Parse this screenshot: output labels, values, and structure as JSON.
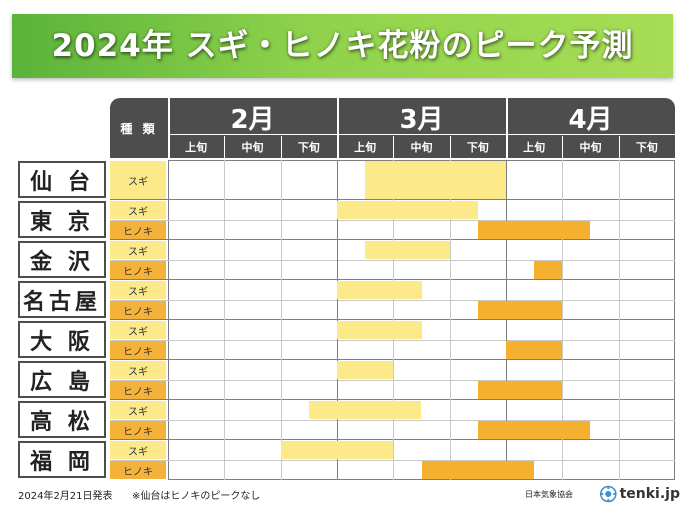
{
  "title": "2024年 スギ・ヒノキ花粉のピーク予測",
  "header": {
    "kind_label": "種 類",
    "months": [
      "2月",
      "3月",
      "4月"
    ],
    "dekads": [
      "上旬",
      "中旬",
      "下旬",
      "上旬",
      "中旬",
      "下旬",
      "上旬",
      "中旬",
      "下旬"
    ]
  },
  "colors": {
    "sugi": "#fbe98a",
    "hinoki": "#f4b02e",
    "header_bg": "#4d4d4d",
    "banner": "#7cc443"
  },
  "cities": [
    {
      "name": "仙 台",
      "rows": [
        {
          "type": "スギ",
          "kind": "sugi",
          "periods": [
            [
              3.5,
              6.0
            ]
          ]
        }
      ]
    },
    {
      "name": "東 京",
      "rows": [
        {
          "type": "スギ",
          "kind": "sugi",
          "periods": [
            [
              3.0,
              5.5
            ]
          ]
        },
        {
          "type": "ヒノキ",
          "kind": "hinoki",
          "periods": [
            [
              5.5,
              7.5
            ]
          ]
        }
      ]
    },
    {
      "name": "金 沢",
      "rows": [
        {
          "type": "スギ",
          "kind": "sugi",
          "periods": [
            [
              3.5,
              5.0
            ]
          ]
        },
        {
          "type": "ヒノキ",
          "kind": "hinoki",
          "periods": [
            [
              6.5,
              7.0
            ]
          ]
        }
      ]
    },
    {
      "name": "名古屋",
      "rows": [
        {
          "type": "スギ",
          "kind": "sugi",
          "periods": [
            [
              3.0,
              4.5
            ]
          ]
        },
        {
          "type": "ヒノキ",
          "kind": "hinoki",
          "periods": [
            [
              5.5,
              7.0
            ]
          ]
        }
      ]
    },
    {
      "name": "大 阪",
      "rows": [
        {
          "type": "スギ",
          "kind": "sugi",
          "periods": [
            [
              3.0,
              4.5
            ]
          ]
        },
        {
          "type": "ヒノキ",
          "kind": "hinoki",
          "periods": [
            [
              6.0,
              7.0
            ]
          ]
        }
      ]
    },
    {
      "name": "広 島",
      "rows": [
        {
          "type": "スギ",
          "kind": "sugi",
          "periods": [
            [
              3.0,
              4.0
            ]
          ]
        },
        {
          "type": "ヒノキ",
          "kind": "hinoki",
          "periods": [
            [
              5.5,
              7.0
            ]
          ]
        }
      ]
    },
    {
      "name": "高 松",
      "rows": [
        {
          "type": "スギ",
          "kind": "sugi",
          "periods": [
            [
              2.5,
              4.5
            ]
          ]
        },
        {
          "type": "ヒノキ",
          "kind": "hinoki",
          "periods": [
            [
              5.5,
              7.5
            ]
          ]
        }
      ]
    },
    {
      "name": "福 岡",
      "rows": [
        {
          "type": "スギ",
          "kind": "sugi",
          "periods": [
            [
              2.0,
              4.0
            ]
          ]
        },
        {
          "type": "ヒノキ",
          "kind": "hinoki",
          "periods": [
            [
              4.5,
              6.5
            ]
          ]
        }
      ]
    }
  ],
  "footer": {
    "date": "2024年2月21日発表",
    "note": "※仙台はヒノキのピークなし",
    "org": "日本気象協会",
    "brand": "tenki.jp"
  }
}
